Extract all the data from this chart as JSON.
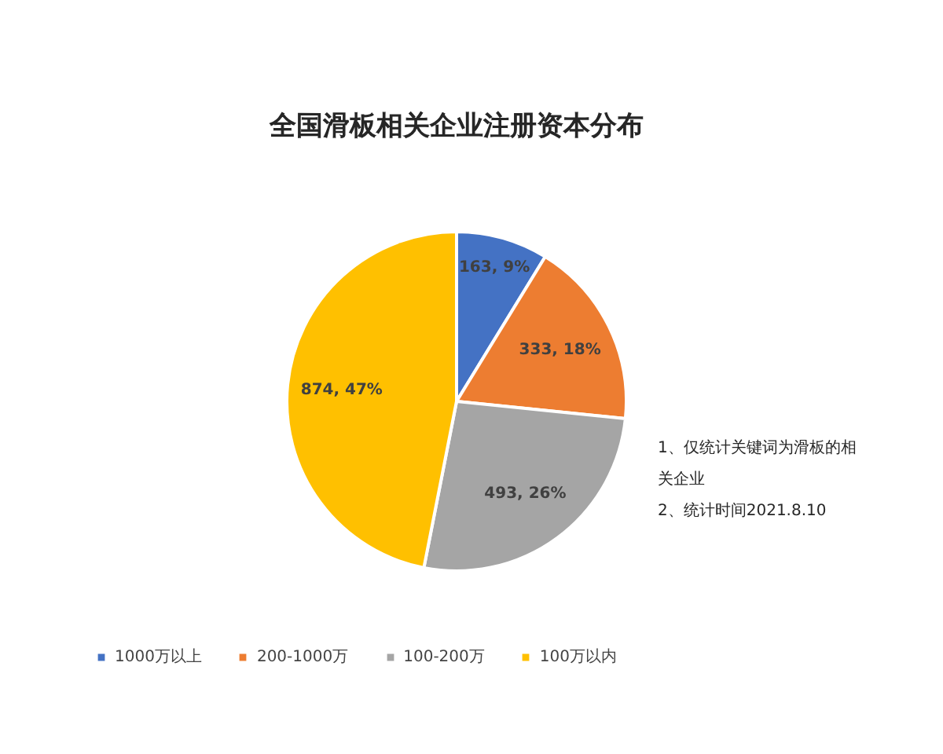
{
  "chart_data": {
    "type": "pie",
    "title": "全国滑板相关企业注册资本分布",
    "categories": [
      "1000万以上",
      "200-1000万",
      "100-200万",
      "100万以内"
    ],
    "values": [
      163,
      333,
      493,
      874
    ],
    "colors": [
      "#4472c4",
      "#ed7d31",
      "#a5a5a5",
      "#ffc000"
    ],
    "value_labels": [
      "163, 9%",
      "333, 18%",
      "493, 26%",
      "874, 47%"
    ],
    "annotations": [
      "1、仅统计关键词为滑板的相关企业",
      "2、统计时间2021.8.10"
    ],
    "legend": "bottom"
  }
}
